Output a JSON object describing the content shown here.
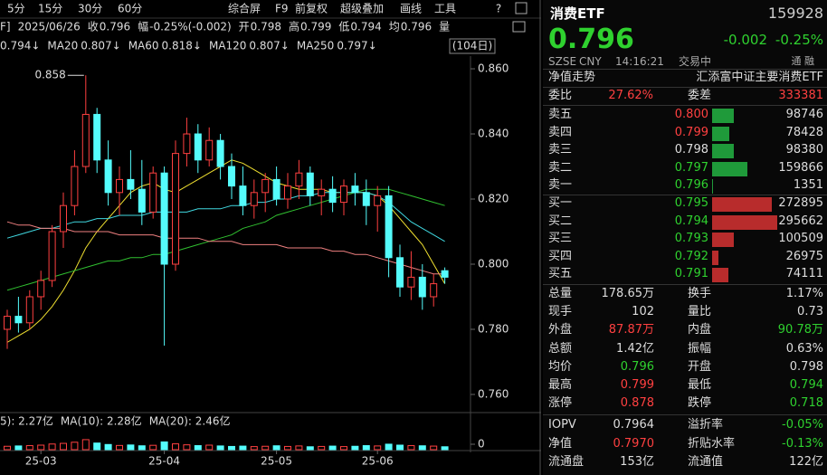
{
  "toolbar": [
    "5分",
    "15分",
    "30分",
    "60分",
    "综合屏",
    "F9",
    "前复权",
    "超级叠加",
    "画线",
    "工具"
  ],
  "chart_data": {
    "type": "candlestick",
    "info": [
      {
        "text": "F]",
        "color": "#dddddd"
      },
      {
        "text": "2025/06/26",
        "color": "#dddddd"
      },
      {
        "label": "收",
        "value": "0.796",
        "color": "#2fd12f"
      },
      {
        "label": "幅",
        "value": "-0.25%(-0.002)",
        "color": "#2fd12f"
      },
      {
        "label": "开",
        "value": "0.798",
        "color": "#dddddd"
      },
      {
        "label": "高",
        "value": "0.799",
        "color": "#ff4040"
      },
      {
        "label": "低",
        "value": "0.794",
        "color": "#2fd12f"
      },
      {
        "label": "均",
        "value": "0.796",
        "color": "#dddddd"
      },
      {
        "text": "量",
        "color": "#dddddd"
      }
    ],
    "period": "(104日)",
    "annotation": "0.858",
    "categories": [
      null,
      null,
      null,
      "25-03",
      null,
      null,
      null,
      null,
      null,
      null,
      null,
      null,
      null,
      null,
      "25-04",
      null,
      null,
      null,
      null,
      null,
      null,
      null,
      null,
      null,
      "25-05",
      null,
      null,
      null,
      null,
      null,
      null,
      null,
      null,
      "25-06",
      null,
      null,
      null,
      null,
      null,
      null
    ],
    "open": [
      0.78,
      0.784,
      0.782,
      0.79,
      0.795,
      0.81,
      0.818,
      0.83,
      0.846,
      0.832,
      0.822,
      0.826,
      0.823,
      0.816,
      0.828,
      0.8,
      0.834,
      0.84,
      0.832,
      0.838,
      0.83,
      0.824,
      0.818,
      0.822,
      0.826,
      0.82,
      0.824,
      0.828,
      0.821,
      0.823,
      0.819,
      0.824,
      0.822,
      0.818,
      0.821,
      0.802,
      0.793,
      0.796,
      0.79,
      0.798
    ],
    "high": [
      0.786,
      0.79,
      0.792,
      0.798,
      0.812,
      0.822,
      0.835,
      0.858,
      0.848,
      0.838,
      0.83,
      0.835,
      0.832,
      0.83,
      0.83,
      0.838,
      0.845,
      0.843,
      0.842,
      0.84,
      0.834,
      0.83,
      0.826,
      0.828,
      0.83,
      0.828,
      0.832,
      0.83,
      0.826,
      0.827,
      0.826,
      0.828,
      0.826,
      0.824,
      0.824,
      0.806,
      0.804,
      0.8,
      0.797,
      0.799
    ],
    "low": [
      0.774,
      0.779,
      0.78,
      0.786,
      0.793,
      0.805,
      0.815,
      0.828,
      0.828,
      0.818,
      0.815,
      0.82,
      0.812,
      0.814,
      0.775,
      0.798,
      0.83,
      0.828,
      0.83,
      0.826,
      0.82,
      0.815,
      0.814,
      0.816,
      0.818,
      0.817,
      0.82,
      0.818,
      0.815,
      0.816,
      0.815,
      0.818,
      0.812,
      0.81,
      0.796,
      0.79,
      0.789,
      0.786,
      0.787,
      0.794
    ],
    "close": [
      0.784,
      0.782,
      0.79,
      0.795,
      0.81,
      0.818,
      0.83,
      0.846,
      0.832,
      0.822,
      0.826,
      0.823,
      0.816,
      0.828,
      0.8,
      0.834,
      0.84,
      0.832,
      0.838,
      0.83,
      0.824,
      0.818,
      0.822,
      0.826,
      0.82,
      0.824,
      0.828,
      0.821,
      0.823,
      0.819,
      0.824,
      0.822,
      0.818,
      0.821,
      0.802,
      0.793,
      0.796,
      0.79,
      0.794,
      0.796
    ],
    "up_color": "#ff4040",
    "down_color": "#54fcfc",
    "ylim": [
      0.7561,
      0.8639
    ],
    "yticks": [
      {
        "value": 0.86,
        "label": "0.860"
      },
      {
        "value": 0.84,
        "label": "0.840"
      },
      {
        "value": 0.82,
        "label": "0.820"
      },
      {
        "value": 0.8,
        "label": "0.800"
      },
      {
        "value": 0.78,
        "label": "0.780"
      },
      {
        "value": 0.76,
        "label": "0.760"
      }
    ],
    "series": [
      {
        "label": "0.794↓",
        "color": "#f0e030",
        "values": [
          0.776,
          0.778,
          0.78,
          0.783,
          0.787,
          0.792,
          0.798,
          0.805,
          0.81,
          0.814,
          0.818,
          0.822,
          0.824,
          0.825,
          0.823,
          0.822,
          0.824,
          0.826,
          0.828,
          0.83,
          0.832,
          0.831,
          0.829,
          0.827,
          0.825,
          0.824,
          0.823,
          0.823,
          0.823,
          0.822,
          0.822,
          0.822,
          0.822,
          0.821,
          0.818,
          0.814,
          0.81,
          0.806,
          0.8,
          0.794
        ]
      },
      {
        "name": "MA20",
        "label": "0.807↓",
        "color": "#e040e0"
      },
      {
        "name": "MA60",
        "label": "0.818↓",
        "color": "#30c030",
        "values": [
          0.792,
          0.793,
          0.794,
          0.795,
          0.796,
          0.797,
          0.798,
          0.799,
          0.8,
          0.801,
          0.801,
          0.802,
          0.802,
          0.803,
          0.803,
          0.804,
          0.805,
          0.806,
          0.807,
          0.808,
          0.809,
          0.811,
          0.812,
          0.813,
          0.815,
          0.816,
          0.817,
          0.818,
          0.819,
          0.82,
          0.821,
          0.822,
          0.823,
          0.823,
          0.823,
          0.822,
          0.821,
          0.82,
          0.819,
          0.818
        ]
      },
      {
        "name": "MA120",
        "label": "0.807↓",
        "color": "#40d8e0",
        "values": [
          0.808,
          0.809,
          0.81,
          0.811,
          0.811,
          0.812,
          0.813,
          0.813,
          0.814,
          0.814,
          0.815,
          0.815,
          0.815,
          0.816,
          0.816,
          0.816,
          0.816,
          0.817,
          0.817,
          0.817,
          0.818,
          0.818,
          0.819,
          0.819,
          0.82,
          0.82,
          0.821,
          0.821,
          0.822,
          0.822,
          0.822,
          0.822,
          0.822,
          0.821,
          0.819,
          0.816,
          0.813,
          0.811,
          0.809,
          0.807
        ]
      },
      {
        "name": "MA250",
        "label": "0.797↓",
        "color": "#f08080",
        "values": [
          0.813,
          0.812,
          0.812,
          0.811,
          0.811,
          0.811,
          0.81,
          0.81,
          0.81,
          0.81,
          0.809,
          0.809,
          0.809,
          0.809,
          0.808,
          0.808,
          0.808,
          0.808,
          0.807,
          0.807,
          0.807,
          0.806,
          0.806,
          0.806,
          0.806,
          0.805,
          0.805,
          0.805,
          0.805,
          0.804,
          0.804,
          0.803,
          0.803,
          0.802,
          0.801,
          0.8,
          0.799,
          0.798,
          0.797,
          0.797
        ]
      }
    ],
    "volume_legend": [
      {
        "text": "5): 2.27亿",
        "color": "#dddddd"
      },
      {
        "text": "MA(10): 2.28亿",
        "color": "#f0e030"
      },
      {
        "text": "MA(20): 2.46亿",
        "color": "#e040e0"
      }
    ],
    "volume": [
      2.1,
      2.3,
      2.5,
      2.8,
      3.5,
      3.9,
      4.6,
      6.2,
      4.1,
      3.2,
      2.6,
      2.9,
      2.4,
      2.7,
      4.8,
      3.6,
      3.0,
      2.5,
      2.8,
      2.3,
      2.0,
      2.2,
      1.9,
      2.1,
      2.4,
      2.0,
      2.3,
      1.8,
      2.0,
      2.2,
      1.9,
      2.1,
      2.5,
      2.3,
      3.4,
      2.8,
      2.5,
      2.4,
      2.2,
      1.8
    ],
    "volume_ylim": [
      0,
      14
    ],
    "volume_yticks": [
      0
    ]
  },
  "panel": {
    "name": "消费ETF",
    "code": "159928",
    "price": "0.796",
    "change": "-0.002",
    "change_pct": "-0.25%",
    "meta": [
      "SZSE",
      "CNY",
      "14:16:21",
      "交易中"
    ],
    "badge": "通 融",
    "tab": "净值走势",
    "fund_name": "汇添富中证主要消费ETF",
    "ratio_label": "委比",
    "ratio": "27.62%",
    "diff_label": "委差",
    "diff": "333381",
    "asks": [
      {
        "label": "卖五",
        "price": "0.800",
        "volume": 98746,
        "color": "#ff4040"
      },
      {
        "label": "卖四",
        "price": "0.799",
        "volume": 78428,
        "color": "#ff4040"
      },
      {
        "label": "卖三",
        "price": "0.798",
        "volume": 98380,
        "color": "#dddddd"
      },
      {
        "label": "卖二",
        "price": "0.797",
        "volume": 159866,
        "color": "#2fd12f"
      },
      {
        "label": "卖一",
        "price": "0.796",
        "volume": 1351,
        "color": "#2fd12f"
      }
    ],
    "bids": [
      {
        "label": "买一",
        "price": "0.795",
        "volume": 272895,
        "color": "#2fd12f"
      },
      {
        "label": "买二",
        "price": "0.794",
        "volume": 295662,
        "color": "#2fd12f"
      },
      {
        "label": "买三",
        "price": "0.793",
        "volume": 100509,
        "color": "#2fd12f"
      },
      {
        "label": "买四",
        "price": "0.792",
        "volume": 26975,
        "color": "#2fd12f"
      },
      {
        "label": "买五",
        "price": "0.791",
        "volume": 74111,
        "color": "#2fd12f"
      }
    ],
    "ask_color": "#1f9a3a",
    "bid_color": "#b82c2c",
    "stats": [
      [
        {
          "label": "总量",
          "value": "178.65万",
          "color": "#dddddd"
        },
        {
          "label": "换手",
          "value": "1.17%",
          "color": "#dddddd"
        }
      ],
      [
        {
          "label": "现手",
          "value": "102",
          "color": "#dddddd"
        },
        {
          "label": "量比",
          "value": "0.73",
          "color": "#dddddd"
        }
      ],
      [
        {
          "label": "外盘",
          "value": "87.87万",
          "color": "#ff4040"
        },
        {
          "label": "内盘",
          "value": "90.78万",
          "color": "#2fd12f"
        }
      ],
      [
        {
          "label": "总额",
          "value": "1.42亿",
          "color": "#dddddd"
        },
        {
          "label": "振幅",
          "value": "0.63%",
          "color": "#dddddd"
        }
      ],
      [
        {
          "label": "均价",
          "value": "0.796",
          "color": "#2fd12f"
        },
        {
          "label": "开盘",
          "value": "0.798",
          "color": "#dddddd"
        }
      ],
      [
        {
          "label": "最高",
          "value": "0.799",
          "color": "#ff4040"
        },
        {
          "label": "最低",
          "value": "0.794",
          "color": "#2fd12f"
        }
      ],
      [
        {
          "label": "涨停",
          "value": "0.878",
          "color": "#ff4040"
        },
        {
          "label": "跌停",
          "value": "0.718",
          "color": "#2fd12f"
        }
      ],
      [
        {
          "label": "IOPV",
          "value": "0.7964",
          "color": "#dddddd"
        },
        {
          "label": "溢折率",
          "value": "-0.05%",
          "color": "#2fd12f"
        }
      ],
      [
        {
          "label": "净值",
          "value": "0.7970",
          "color": "#ff4040"
        },
        {
          "label": "折贴水率",
          "value": "-0.13%",
          "color": "#2fd12f"
        }
      ],
      [
        {
          "label": "流通盘",
          "value": "153亿",
          "color": "#dddddd"
        },
        {
          "label": "流通值",
          "value": "122亿",
          "color": "#dddddd"
        }
      ]
    ]
  }
}
